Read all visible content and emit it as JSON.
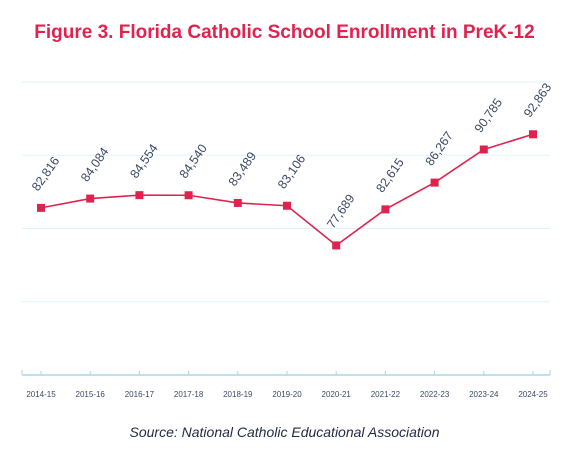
{
  "title": "Figure 3. Florida Catholic School Enrollment in PreK-12",
  "source": "Source: National Catholic Educational Association",
  "colors": {
    "title": "#e0234e",
    "line": "#e0234e",
    "marker": "#e0234e",
    "grid": "#dff3fa",
    "axis": "#a8d6e6",
    "label": "#3b4a66"
  },
  "chart_data": {
    "type": "line",
    "title": "Figure 3. Florida Catholic School Enrollment in PreK-12",
    "xlabel": "",
    "ylabel": "",
    "categories": [
      "2014-15",
      "2015-16",
      "2016-17",
      "2017-18",
      "2018-19",
      "2019-20",
      "2020-21",
      "2021-22",
      "2022-23",
      "2023-24",
      "2024-25"
    ],
    "series": [
      {
        "values": [
          82816,
          84084,
          84554,
          84540,
          83489,
          83106,
          77689,
          82615,
          86267,
          90785,
          92863
        ],
        "labels": [
          "82,816",
          "84,084",
          "84,554",
          "84,540",
          "83,489",
          "83,106",
          "77,689",
          "82,615",
          "86,267",
          "90,785",
          "92,863"
        ]
      }
    ],
    "ylim": [
      60000,
      100000
    ],
    "grid": true,
    "legend": "none",
    "data_labels": true
  }
}
